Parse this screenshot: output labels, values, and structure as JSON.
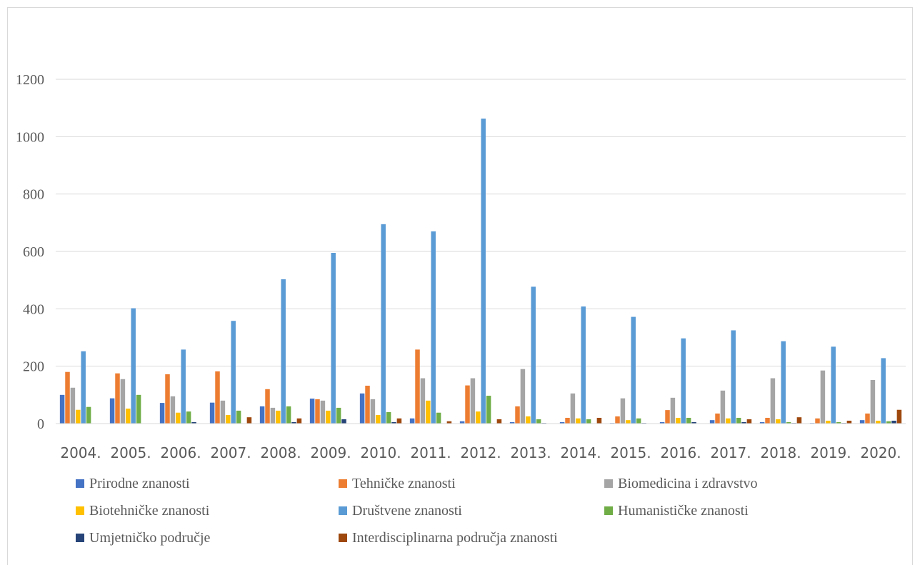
{
  "chart_data": {
    "type": "bar",
    "title": "",
    "xlabel": "",
    "ylabel": "",
    "ylim": [
      0,
      1200
    ],
    "yticks": [
      0,
      200,
      400,
      600,
      800,
      1000,
      1200
    ],
    "grid": true,
    "legend_position": "bottom",
    "categories": [
      "2004.",
      "2005.",
      "2006.",
      "2007.",
      "2008.",
      "2009.",
      "2010.",
      "2011.",
      "2012.",
      "2013.",
      "2014.",
      "2015.",
      "2016.",
      "2017.",
      "2018.",
      "2019.",
      "2020."
    ],
    "series": [
      {
        "name": "Prirodne znanosti",
        "color": "#4472C4",
        "values": [
          100,
          88,
          72,
          73,
          60,
          87,
          105,
          18,
          8,
          5,
          5,
          2,
          5,
          12,
          5,
          2,
          12
        ]
      },
      {
        "name": "Tehničke znanosti",
        "color": "#ED7D31",
        "values": [
          180,
          175,
          172,
          182,
          120,
          85,
          132,
          258,
          133,
          60,
          20,
          25,
          47,
          35,
          20,
          18,
          35
        ]
      },
      {
        "name": "Biomedicina i zdravstvo",
        "color": "#A5A5A5",
        "values": [
          125,
          155,
          95,
          80,
          55,
          80,
          85,
          158,
          158,
          190,
          105,
          88,
          90,
          115,
          158,
          185,
          152
        ]
      },
      {
        "name": "Biotehničke znanosti",
        "color": "#FFC000",
        "values": [
          48,
          52,
          38,
          30,
          45,
          45,
          30,
          80,
          42,
          25,
          18,
          12,
          20,
          18,
          15,
          10,
          10
        ]
      },
      {
        "name": "Društvene znanosti",
        "color": "#5B9BD5",
        "values": [
          252,
          402,
          258,
          358,
          503,
          595,
          695,
          670,
          1063,
          477,
          408,
          372,
          297,
          325,
          287,
          268,
          228
        ]
      },
      {
        "name": "Humanističke znanosti",
        "color": "#70AD47",
        "values": [
          58,
          100,
          42,
          45,
          60,
          55,
          40,
          38,
          97,
          15,
          15,
          18,
          20,
          20,
          5,
          5,
          8
        ]
      },
      {
        "name": "Umjetničko područje",
        "color": "#264478",
        "values": [
          0,
          0,
          5,
          0,
          5,
          15,
          5,
          0,
          0,
          2,
          0,
          2,
          5,
          5,
          2,
          2,
          10
        ]
      },
      {
        "name": "Interdisciplinarna područja znanosti",
        "color": "#9E480E",
        "values": [
          0,
          0,
          0,
          22,
          18,
          0,
          18,
          8,
          15,
          0,
          20,
          0,
          0,
          15,
          22,
          10,
          48
        ]
      }
    ]
  }
}
